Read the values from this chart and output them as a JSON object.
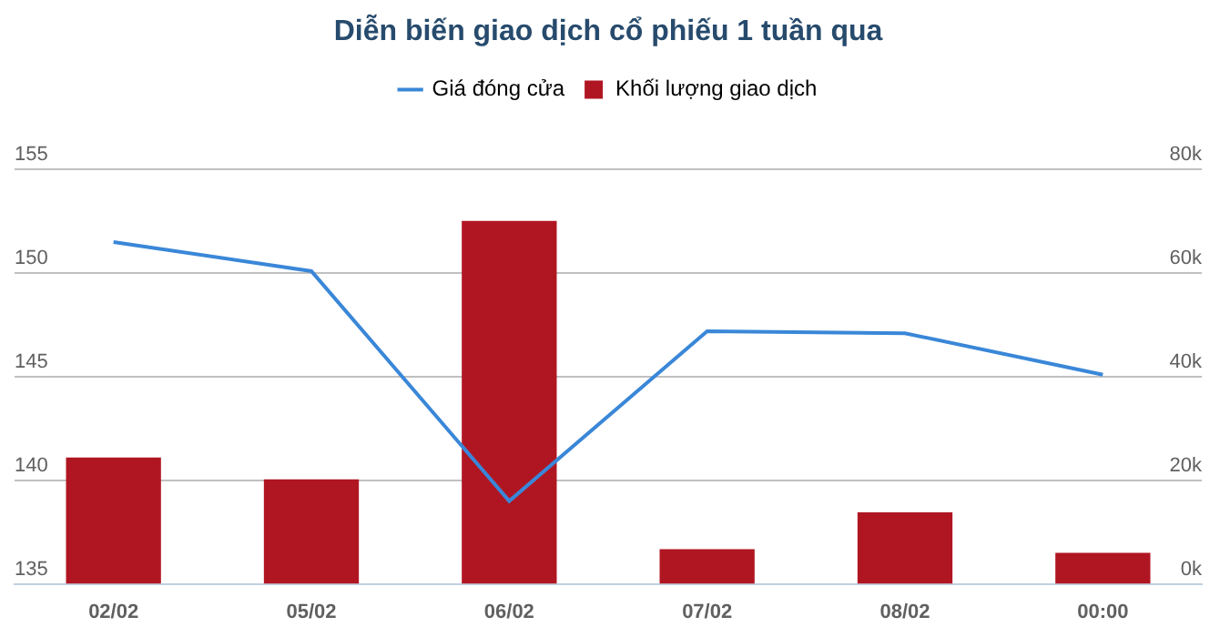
{
  "chart_data": {
    "type": "bar",
    "title": "Diễn biến giao dịch cổ phiếu 1 tuần qua",
    "categories": [
      "02/02",
      "05/02",
      "06/02",
      "07/02",
      "08/02",
      "00:00"
    ],
    "series": [
      {
        "name": "Giá đóng cửa",
        "type": "line",
        "axis": "y",
        "color": "#3a87d8",
        "values": [
          151.5,
          150.1,
          139.0,
          147.2,
          147.1,
          145.1
        ]
      },
      {
        "name": "Khối lượng giao dịch",
        "axis": "y2",
        "color": "#b01622",
        "values": [
          24400,
          20200,
          70100,
          6700,
          13800,
          6000
        ]
      }
    ],
    "ylim": [
      135,
      155
    ],
    "yticks": [
      135,
      140,
      145,
      150,
      155
    ],
    "y2lim": [
      0,
      80000
    ],
    "y2ticks": [
      {
        "value": 0,
        "label": "0k"
      },
      {
        "value": 20000,
        "label": "20k"
      },
      {
        "value": 40000,
        "label": "40k"
      },
      {
        "value": 60000,
        "label": "60k"
      },
      {
        "value": 80000,
        "label": "80k"
      }
    ],
    "grid": "y",
    "legend": "top"
  }
}
